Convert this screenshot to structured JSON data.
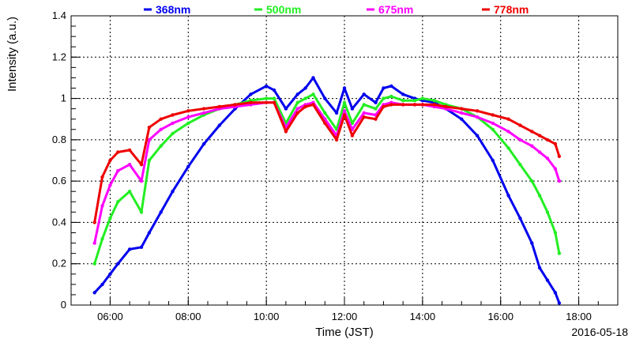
{
  "chart_data": {
    "type": "scatter",
    "title": "",
    "xlabel": "Time (JST)",
    "ylabel": "Intensity (a.u.)",
    "date": "2016-05-18",
    "xlim": [
      5.0,
      19.0
    ],
    "ylim": [
      0,
      1.4
    ],
    "grid": true,
    "legend_position": "top",
    "x_ticks": [
      {
        "value": 6,
        "label": "06:00"
      },
      {
        "value": 8,
        "label": "08:00"
      },
      {
        "value": 10,
        "label": "10:00"
      },
      {
        "value": 12,
        "label": "12:00"
      },
      {
        "value": 14,
        "label": "14:00"
      },
      {
        "value": 16,
        "label": "16:00"
      },
      {
        "value": 18,
        "label": "18:00"
      }
    ],
    "y_ticks": [
      {
        "value": 0,
        "label": "0"
      },
      {
        "value": 0.2,
        "label": "0.2"
      },
      {
        "value": 0.4,
        "label": "0.4"
      },
      {
        "value": 0.6,
        "label": "0.6"
      },
      {
        "value": 0.8,
        "label": "0.8"
      },
      {
        "value": 1.0,
        "label": "1"
      },
      {
        "value": 1.2,
        "label": "1.2"
      },
      {
        "value": 1.4,
        "label": "1.4"
      }
    ],
    "series": [
      {
        "name": "368nm",
        "color": "#0000ee",
        "x": [
          5.6,
          5.8,
          6.0,
          6.2,
          6.5,
          6.8,
          7.0,
          7.3,
          7.6,
          8.0,
          8.4,
          8.8,
          9.2,
          9.6,
          10.0,
          10.2,
          10.5,
          10.8,
          11.0,
          11.2,
          11.5,
          11.8,
          12.0,
          12.2,
          12.5,
          12.8,
          13.0,
          13.2,
          13.5,
          13.8,
          14.0,
          14.3,
          14.6,
          15.0,
          15.4,
          15.8,
          16.2,
          16.5,
          16.8,
          17.0,
          17.2,
          17.4,
          17.5
        ],
        "y": [
          0.06,
          0.1,
          0.15,
          0.2,
          0.27,
          0.28,
          0.35,
          0.45,
          0.55,
          0.67,
          0.78,
          0.87,
          0.95,
          1.02,
          1.06,
          1.04,
          0.95,
          1.02,
          1.05,
          1.1,
          1.0,
          0.93,
          1.05,
          0.95,
          1.02,
          0.98,
          1.05,
          1.06,
          1.02,
          1.0,
          0.99,
          0.98,
          0.95,
          0.9,
          0.82,
          0.7,
          0.53,
          0.42,
          0.3,
          0.18,
          0.12,
          0.06,
          0.01
        ]
      },
      {
        "name": "500nm",
        "color": "#22ee22",
        "x": [
          5.6,
          5.8,
          6.0,
          6.2,
          6.5,
          6.8,
          7.0,
          7.3,
          7.6,
          8.0,
          8.4,
          8.8,
          9.2,
          9.6,
          10.0,
          10.2,
          10.5,
          10.8,
          11.0,
          11.2,
          11.5,
          11.8,
          12.0,
          12.2,
          12.5,
          12.8,
          13.0,
          13.2,
          13.5,
          13.8,
          14.0,
          14.3,
          14.6,
          15.0,
          15.4,
          15.8,
          16.2,
          16.5,
          16.8,
          17.0,
          17.2,
          17.4,
          17.5
        ],
        "y": [
          0.2,
          0.32,
          0.42,
          0.5,
          0.55,
          0.45,
          0.7,
          0.77,
          0.83,
          0.88,
          0.92,
          0.95,
          0.97,
          0.99,
          1.0,
          1.0,
          0.88,
          0.98,
          1.0,
          1.02,
          0.93,
          0.85,
          0.98,
          0.88,
          0.97,
          0.95,
          1.0,
          1.01,
          0.99,
          0.99,
          1.0,
          0.99,
          0.97,
          0.95,
          0.91,
          0.85,
          0.76,
          0.68,
          0.6,
          0.53,
          0.45,
          0.35,
          0.25
        ]
      },
      {
        "name": "675nm",
        "color": "#ff00ff",
        "x": [
          5.6,
          5.8,
          6.0,
          6.2,
          6.5,
          6.8,
          7.0,
          7.3,
          7.6,
          8.0,
          8.4,
          8.8,
          9.2,
          9.6,
          10.0,
          10.2,
          10.5,
          10.8,
          11.0,
          11.2,
          11.5,
          11.8,
          12.0,
          12.2,
          12.5,
          12.8,
          13.0,
          13.2,
          13.5,
          13.8,
          14.0,
          14.3,
          14.6,
          15.0,
          15.4,
          15.8,
          16.2,
          16.5,
          16.8,
          17.0,
          17.2,
          17.4,
          17.5
        ],
        "y": [
          0.3,
          0.48,
          0.58,
          0.65,
          0.68,
          0.6,
          0.8,
          0.85,
          0.88,
          0.91,
          0.93,
          0.95,
          0.96,
          0.97,
          0.98,
          0.98,
          0.86,
          0.95,
          0.97,
          0.98,
          0.9,
          0.82,
          0.94,
          0.85,
          0.93,
          0.92,
          0.97,
          0.98,
          0.97,
          0.97,
          0.97,
          0.96,
          0.95,
          0.93,
          0.91,
          0.88,
          0.84,
          0.8,
          0.77,
          0.74,
          0.71,
          0.66,
          0.6
        ]
      },
      {
        "name": "778nm",
        "color": "#ee0000",
        "x": [
          5.6,
          5.8,
          6.0,
          6.2,
          6.5,
          6.8,
          7.0,
          7.3,
          7.6,
          8.0,
          8.4,
          8.8,
          9.2,
          9.6,
          10.0,
          10.2,
          10.5,
          10.8,
          11.0,
          11.2,
          11.5,
          11.8,
          12.0,
          12.2,
          12.5,
          12.8,
          13.0,
          13.2,
          13.5,
          13.8,
          14.0,
          14.3,
          14.6,
          15.0,
          15.4,
          15.8,
          16.2,
          16.5,
          16.8,
          17.0,
          17.2,
          17.4,
          17.5
        ],
        "y": [
          0.4,
          0.62,
          0.7,
          0.74,
          0.75,
          0.68,
          0.86,
          0.9,
          0.92,
          0.94,
          0.95,
          0.96,
          0.97,
          0.98,
          0.98,
          0.98,
          0.84,
          0.93,
          0.96,
          0.97,
          0.88,
          0.8,
          0.92,
          0.82,
          0.91,
          0.9,
          0.96,
          0.97,
          0.97,
          0.97,
          0.97,
          0.97,
          0.96,
          0.95,
          0.94,
          0.92,
          0.9,
          0.87,
          0.84,
          0.82,
          0.8,
          0.78,
          0.72
        ]
      }
    ]
  }
}
